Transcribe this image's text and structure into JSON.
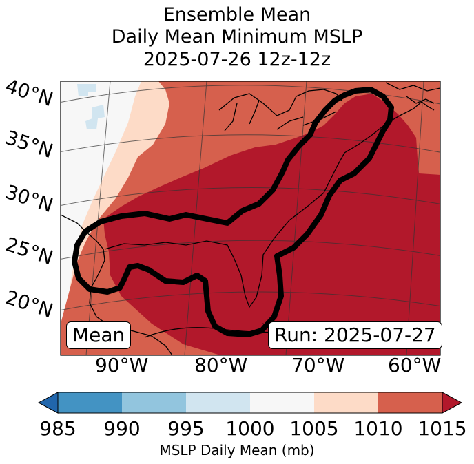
{
  "title": {
    "line1": "Ensemble Mean",
    "line2": "Daily Mean Minimum MSLP",
    "line3": "2025-07-26 12z-12z"
  },
  "map": {
    "lat_labels": [
      "40°N",
      "35°N",
      "30°N",
      "25°N",
      "20°N"
    ],
    "lon_labels": [
      "90°W",
      "80°W",
      "70°W",
      "60°W"
    ],
    "mean_box": "Mean",
    "run_box": "Run: 2025-07-27",
    "contour_color": "#000000"
  },
  "colorbar": {
    "ticks": [
      "985",
      "990",
      "995",
      "1000",
      "1005",
      "1010",
      "1015"
    ],
    "label": "MSLP Daily Mean (mb)",
    "colors": [
      "#2166ac",
      "#4393c3",
      "#92c5de",
      "#d1e5f0",
      "#f7f7f7",
      "#fddbc7",
      "#d6604d",
      "#b2182b"
    ],
    "bins": [
      "<985",
      "985-990",
      "990-995",
      "995-1000",
      "1000-1005",
      "1005-1010",
      "1010-1015",
      ">1015"
    ]
  }
}
